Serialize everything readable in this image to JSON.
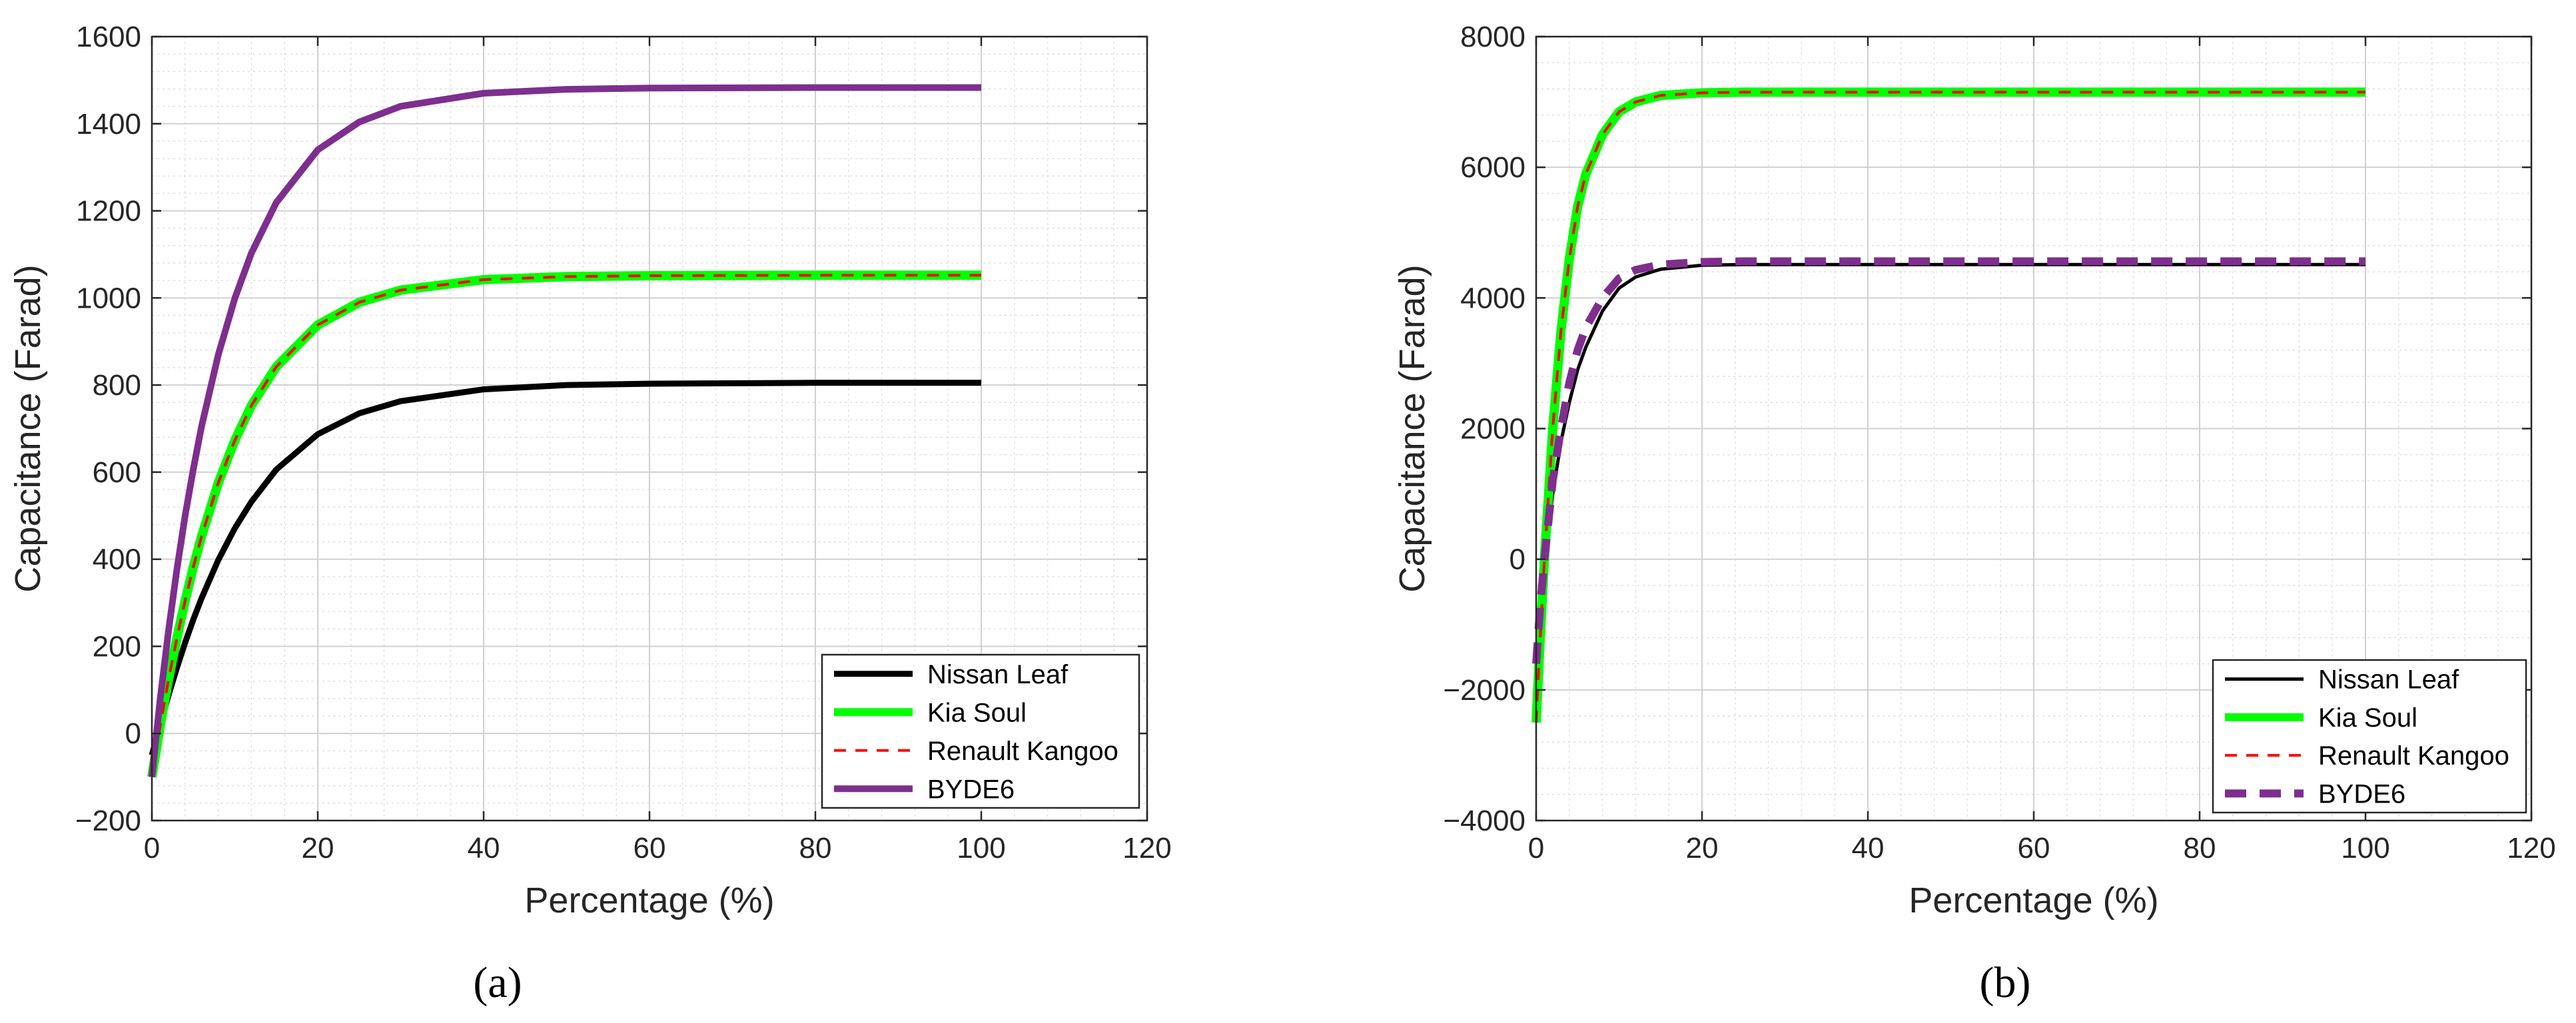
{
  "figure": {
    "captions": [
      "(a)",
      "(b)"
    ]
  },
  "chart_data": [
    {
      "type": "line",
      "panel": "(a)",
      "title": "",
      "xlabel": "Percentage (%)",
      "ylabel": "Capacitance (Farad)",
      "xlim": [
        0,
        120
      ],
      "ylim": [
        -200,
        1600
      ],
      "xticks": [
        0,
        20,
        40,
        60,
        80,
        100,
        120
      ],
      "yticks": [
        -200,
        0,
        200,
        400,
        600,
        800,
        1000,
        1200,
        1400,
        1600
      ],
      "xtick_labels": [
        "0",
        "20",
        "40",
        "60",
        "80",
        "100",
        "120"
      ],
      "ytick_labels": [
        "−200",
        "0",
        "200",
        "400",
        "600",
        "800",
        "1000",
        "1200",
        "1400",
        "1600"
      ],
      "grid": true,
      "minor_grid": true,
      "legend_position": "bottom-right",
      "x": [
        0,
        1,
        2,
        3,
        4,
        5,
        6,
        8,
        10,
        12,
        15,
        20,
        25,
        30,
        40,
        50,
        60,
        80,
        100
      ],
      "series": [
        {
          "name": "Nissan Leaf",
          "color": "#000000",
          "style": "solid",
          "width": 9,
          "values": [
            -50,
            20,
            87,
            150,
            208,
            262,
            311,
            398,
            471,
            532,
            606,
            687,
            735,
            763,
            790,
            800,
            803,
            805,
            805
          ]
        },
        {
          "name": "Kia Soul",
          "color": "#00ff00",
          "style": "solid",
          "width": 14,
          "values": [
            -100,
            17,
            123,
            218,
            304,
            383,
            453,
            575,
            673,
            753,
            842,
            938,
            990,
            1018,
            1042,
            1049,
            1051,
            1052,
            1052
          ]
        },
        {
          "name": "Renault Kangoo",
          "color": "#ff0000",
          "style": "dashed",
          "width": 4,
          "values": [
            -100,
            17,
            123,
            218,
            304,
            383,
            453,
            575,
            673,
            753,
            842,
            938,
            990,
            1018,
            1042,
            1049,
            1051,
            1052,
            1052
          ]
        },
        {
          "name": "BYDE6",
          "color": "#7e2f8e",
          "style": "solid",
          "width": 10,
          "values": [
            -100,
            78,
            235,
            375,
            499,
            608,
            706,
            869,
            999,
            1103,
            1219,
            1340,
            1404,
            1440,
            1470,
            1479,
            1482,
            1483,
            1483
          ]
        }
      ]
    },
    {
      "type": "line",
      "panel": "(b)",
      "title": "",
      "xlabel": "Percentage (%)",
      "ylabel": "Capacitance (Farad)",
      "xlim": [
        0,
        120
      ],
      "ylim": [
        -4000,
        8000
      ],
      "xticks": [
        0,
        20,
        40,
        60,
        80,
        100,
        120
      ],
      "yticks": [
        -4000,
        -2000,
        0,
        2000,
        4000,
        6000,
        8000
      ],
      "xtick_labels": [
        "0",
        "20",
        "40",
        "60",
        "80",
        "100",
        "120"
      ],
      "ytick_labels": [
        "−4000",
        "−2000",
        "0",
        "2000",
        "4000",
        "6000",
        "8000"
      ],
      "grid": true,
      "minor_grid": true,
      "legend_position": "bottom-right",
      "x": [
        0,
        0.5,
        1,
        1.5,
        2,
        3,
        4,
        5,
        6,
        8,
        10,
        12,
        15,
        20,
        25,
        30,
        40,
        60,
        80,
        100
      ],
      "series": [
        {
          "name": "Nissan Leaf",
          "color": "#000000",
          "style": "solid",
          "width": 5,
          "values": [
            -1600,
            -800,
            -100,
            500,
            1000,
            1800,
            2400,
            2900,
            3250,
            3800,
            4150,
            4320,
            4440,
            4500,
            4510,
            4510,
            4510,
            4510,
            4510,
            4510
          ]
        },
        {
          "name": "Kia Soul",
          "color": "#00ff00",
          "style": "solid",
          "width": 14,
          "values": [
            -2500,
            -1200,
            0,
            1000,
            2000,
            3500,
            4600,
            5400,
            5900,
            6500,
            6850,
            7000,
            7100,
            7140,
            7150,
            7150,
            7150,
            7150,
            7150,
            7150
          ]
        },
        {
          "name": "Renault Kangoo",
          "color": "#ff0000",
          "style": "dashed",
          "width": 4,
          "values": [
            -2500,
            -1200,
            0,
            1000,
            2000,
            3500,
            4600,
            5400,
            5900,
            6500,
            6850,
            7000,
            7100,
            7140,
            7150,
            7150,
            7150,
            7150,
            7150,
            7150
          ]
        },
        {
          "name": "BYDE6",
          "color": "#7e2f8e",
          "style": "dashed-thick",
          "width": 12,
          "values": [
            -1600,
            -700,
            0,
            600,
            1200,
            2000,
            2700,
            3200,
            3550,
            4000,
            4300,
            4430,
            4510,
            4550,
            4560,
            4560,
            4560,
            4560,
            4560,
            4560
          ]
        }
      ]
    }
  ]
}
